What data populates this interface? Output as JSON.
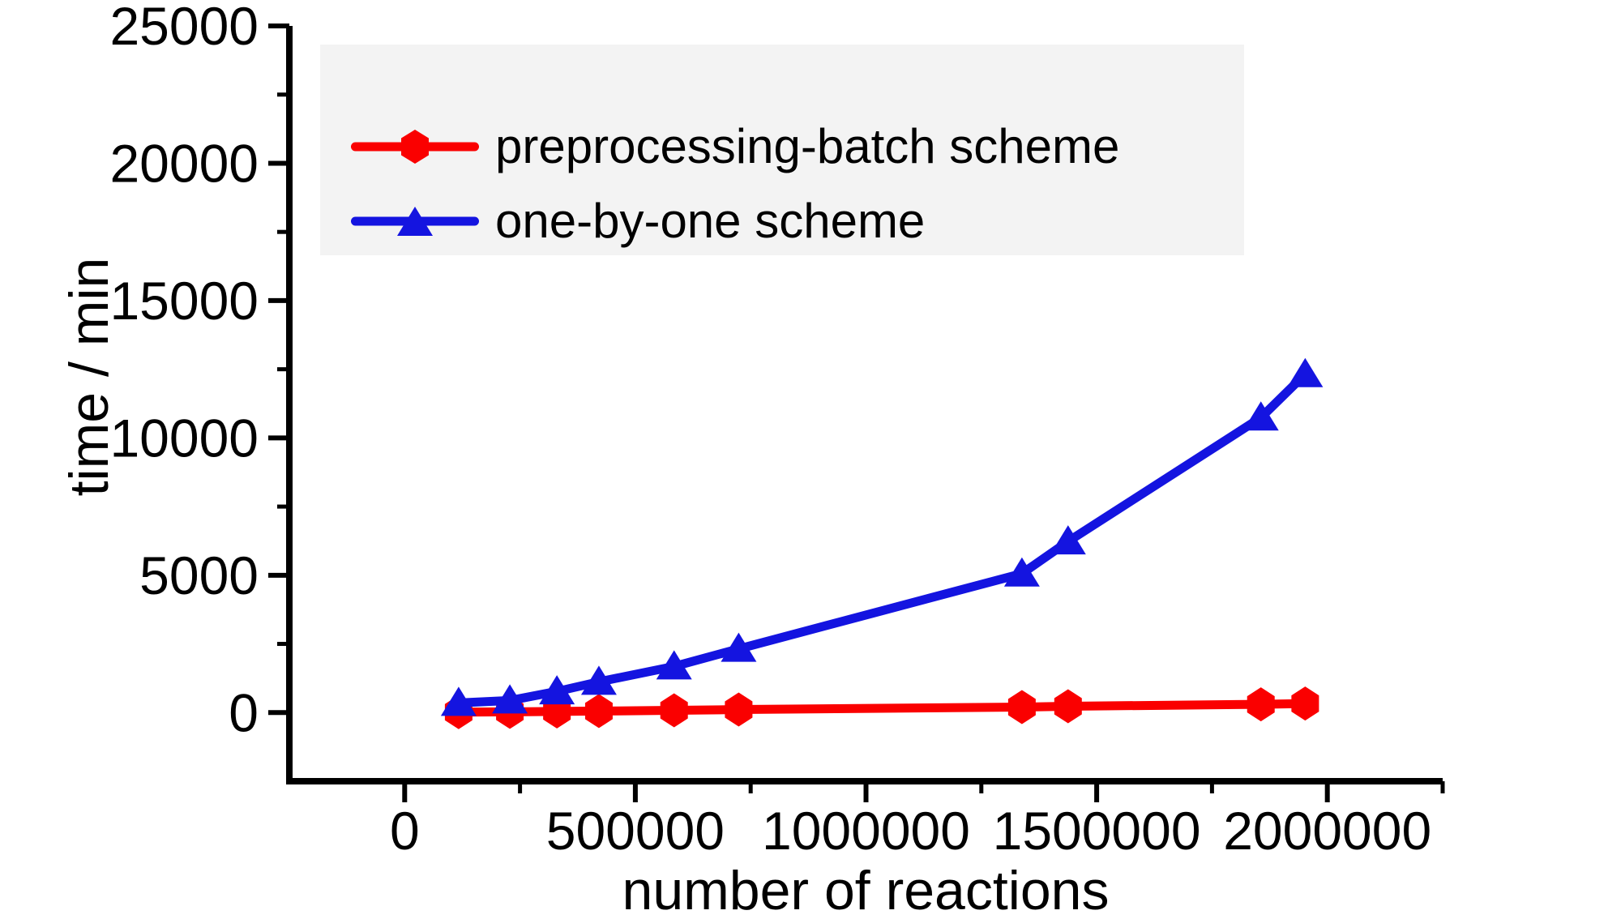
{
  "figure": {
    "background": "#ffffff",
    "axis_color": "#000000"
  },
  "x_axis": {
    "title": "number of reactions",
    "ticks": [
      0,
      500000,
      1000000,
      1500000,
      2000000
    ],
    "minor_ticks": [
      250000,
      750000,
      1250000,
      1750000,
      2250000
    ],
    "range": [
      -250000,
      2250000
    ]
  },
  "y_axis": {
    "title": "time / min",
    "ticks": [
      0,
      5000,
      10000,
      15000,
      20000,
      25000
    ],
    "minor_ticks": [
      2500,
      7500,
      12500,
      17500,
      22500
    ],
    "range": [
      -2500,
      25000
    ]
  },
  "legend": {
    "items": [
      {
        "label": "preprocessing-batch scheme",
        "color": "#fa0000",
        "marker": "hexagon"
      },
      {
        "label": "one-by-one scheme",
        "color": "#1414e0",
        "marker": "triangle"
      }
    ]
  },
  "chart_data": {
    "type": "line",
    "title": "",
    "xlabel": "number of reactions",
    "ylabel": "time / min",
    "xlim": [
      -250000,
      2250000
    ],
    "ylim": [
      -2500,
      25000
    ],
    "grid": false,
    "legend_position": "upper-left",
    "x": [
      117000,
      228000,
      330000,
      421000,
      584000,
      724000,
      1338000,
      1438000,
      1856000,
      1952000
    ],
    "series": [
      {
        "name": "preprocessing-batch scheme",
        "color": "#fa0000",
        "marker": "hexagon",
        "values": [
          15,
          25,
          40,
          55,
          80,
          110,
          200,
          230,
          300,
          330
        ]
      },
      {
        "name": "one-by-one scheme",
        "color": "#1414e0",
        "marker": "triangle",
        "values": [
          350,
          440,
          770,
          1120,
          1680,
          2320,
          5060,
          6230,
          10740,
          12320
        ]
      }
    ]
  }
}
